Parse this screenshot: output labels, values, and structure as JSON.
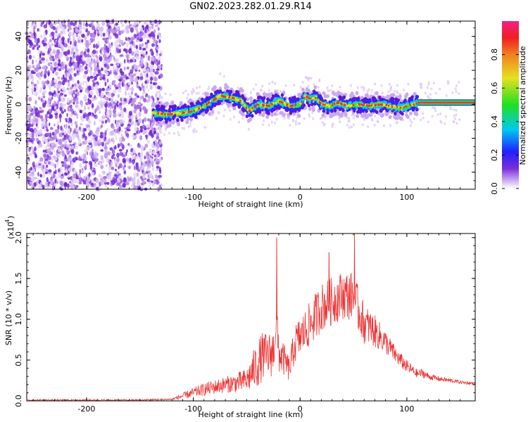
{
  "title": "GN02.2023.282.01.29.R14",
  "chart_data": [
    {
      "type": "heatmap",
      "xlabel": "Height of straight line (km)",
      "ylabel": "Frequency (Hz)",
      "xlim": [
        -256,
        164
      ],
      "ylim": [
        -50,
        49
      ],
      "xticks": [
        -200,
        -100,
        0,
        100
      ],
      "yticks": [
        -40,
        -20,
        0,
        20,
        40
      ],
      "noise_region_x": [
        -256,
        -135
      ],
      "ridge": {
        "x": [
          -138,
          -125,
          -110,
          -100,
          -90,
          -80,
          -75,
          -65,
          -55,
          -48,
          -40,
          -30,
          -20,
          -10,
          0,
          5,
          10,
          15,
          20,
          28,
          35,
          45,
          55,
          65,
          75,
          85,
          95,
          105,
          115,
          130,
          150,
          164
        ],
        "freq": [
          -5,
          -6,
          -5,
          -4,
          -1,
          3,
          5,
          4,
          2,
          -4,
          0,
          -1,
          2,
          -1,
          0,
          5,
          3,
          4,
          0,
          -1,
          1,
          -1,
          0,
          -1,
          0,
          -1,
          -2,
          0,
          1,
          1,
          1,
          1
        ]
      },
      "colorbar": {
        "label": "Normalized spectral amplitude",
        "range": [
          0,
          1
        ],
        "ticks": [
          "0.0",
          "0.2",
          "0.4",
          "0.6",
          "0.8"
        ]
      }
    },
    {
      "type": "line",
      "xlabel": "Height of straight line (km)",
      "ylabel": "SNR (10 * v/v)",
      "yscale_label": "(x10",
      "yscale_exp": "4",
      "yscale_close": ")",
      "xlim": [
        -256,
        164
      ],
      "ylim": [
        0,
        2.05
      ],
      "xticks": [
        -200,
        -100,
        0,
        100
      ],
      "yticks": [
        "0.0",
        "0.5",
        "1.0",
        "1.5",
        "2.0"
      ],
      "color": "#ee3333",
      "series": [
        {
          "x": [
            -256,
            -200,
            -150,
            -120,
            -110,
            -100,
            -90,
            -80,
            -70,
            -60,
            -50,
            -40,
            -35,
            -30,
            -25,
            -22,
            -20,
            -15,
            -10,
            -5,
            0,
            10,
            20,
            30,
            40,
            50,
            55,
            60,
            70,
            80,
            90,
            100,
            110,
            115,
            120,
            130,
            140,
            150,
            164
          ],
          "y": [
            0.01,
            0.01,
            0.01,
            0.02,
            0.06,
            0.1,
            0.14,
            0.17,
            0.2,
            0.22,
            0.25,
            0.45,
            0.55,
            0.55,
            0.6,
            1.0,
            0.58,
            0.5,
            0.38,
            0.7,
            0.78,
            0.95,
            1.15,
            1.22,
            1.3,
            1.28,
            1.1,
            0.95,
            0.85,
            0.72,
            0.55,
            0.42,
            0.33,
            0.34,
            0.3,
            0.27,
            0.25,
            0.23,
            0.21
          ],
          "amp": [
            0.01,
            0.01,
            0.01,
            0.01,
            0.04,
            0.06,
            0.08,
            0.09,
            0.1,
            0.12,
            0.15,
            0.3,
            0.3,
            0.28,
            0.3,
            0.2,
            0.25,
            0.2,
            0.15,
            0.25,
            0.25,
            0.28,
            0.3,
            0.3,
            0.3,
            0.3,
            0.28,
            0.25,
            0.2,
            0.15,
            0.1,
            0.08,
            0.05,
            0.06,
            0.04,
            0.03,
            0.03,
            0.02,
            0.02
          ]
        }
      ],
      "peaks": [
        {
          "x": -22,
          "y": 2.0
        },
        {
          "x": 27,
          "y": 1.82
        },
        {
          "x": 51,
          "y": 2.05
        }
      ]
    }
  ]
}
